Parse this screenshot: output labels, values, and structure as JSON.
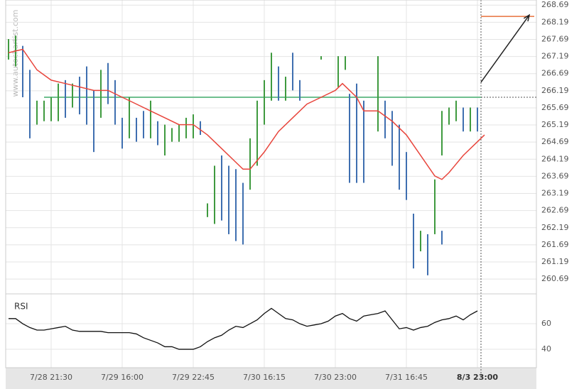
{
  "watermark": "www.autochartist.com",
  "chart_data": {
    "type": "price",
    "ylim": [
      260.34,
      268.84
    ],
    "yticks": [
      268.69,
      268.19,
      267.69,
      267.19,
      266.69,
      266.19,
      265.69,
      265.19,
      264.69,
      264.19,
      263.69,
      263.19,
      262.69,
      262.19,
      261.69,
      261.19,
      260.69
    ],
    "xlim": [
      -0.4,
      74.3
    ],
    "xticks": [
      {
        "value": 6,
        "label": "7/28 21:30"
      },
      {
        "value": 16,
        "label": "7/29 16:00"
      },
      {
        "value": 26,
        "label": "7/29 22:45"
      },
      {
        "value": 36,
        "label": "7/30 16:15"
      },
      {
        "value": 46,
        "label": "7/30 23:00"
      },
      {
        "value": 56,
        "label": "7/31 16:45"
      },
      {
        "value": 66,
        "label": "8/3 23:00"
      }
    ],
    "grid": true,
    "series": [
      {
        "name": "up",
        "color": "#3f9a3f",
        "x": [
          0,
          1,
          4,
          5,
          6,
          7,
          9,
          13,
          17,
          20,
          22,
          23,
          24,
          25,
          26,
          28,
          29,
          34,
          35,
          36,
          37,
          39,
          44,
          46.4,
          47.4,
          52,
          58,
          60,
          61,
          62,
          63,
          65
        ],
        "high": [
          267.7,
          267.8,
          265.9,
          265.9,
          266.0,
          266.4,
          266.4,
          266.8,
          266.0,
          265.9,
          265.2,
          265.1,
          265.2,
          265.4,
          265.5,
          262.9,
          264.0,
          264.8,
          265.9,
          266.5,
          267.3,
          266.6,
          267.2,
          267.2,
          267.2,
          267.2,
          262.1,
          263.6,
          265.6,
          265.7,
          265.9,
          265.7
        ],
        "low": [
          267.1,
          266.9,
          265.2,
          265.3,
          265.3,
          265.3,
          265.7,
          265.4,
          264.8,
          264.8,
          264.3,
          264.7,
          264.7,
          264.8,
          264.8,
          262.5,
          262.3,
          263.3,
          264.0,
          265.2,
          265.9,
          265.9,
          267.1,
          266.3,
          266.8,
          265.0,
          261.5,
          262.0,
          264.3,
          265.2,
          265.3,
          265.0
        ]
      },
      {
        "name": "down",
        "color": "#3f6fb0",
        "x": [
          2,
          3,
          8,
          10,
          11,
          12,
          14,
          15,
          16,
          18,
          19,
          21,
          27,
          30,
          31,
          32,
          33,
          38,
          40,
          41,
          48,
          49,
          50,
          53,
          54,
          55,
          56,
          57,
          59,
          61,
          64,
          66
        ],
        "high": [
          267.5,
          266.8,
          266.5,
          266.6,
          266.9,
          266.2,
          267.0,
          266.5,
          265.4,
          265.4,
          265.6,
          265.3,
          265.3,
          264.3,
          264.0,
          263.9,
          263.5,
          266.9,
          267.3,
          266.5,
          266.1,
          266.4,
          265.9,
          265.9,
          265.6,
          265.2,
          264.4,
          262.6,
          262.0,
          262.1,
          265.7,
          265.7
        ],
        "low": [
          266.0,
          264.8,
          265.4,
          265.5,
          265.2,
          264.4,
          265.8,
          265.2,
          264.5,
          264.7,
          264.8,
          264.6,
          264.9,
          262.4,
          262.0,
          261.8,
          261.7,
          265.9,
          266.2,
          265.9,
          263.5,
          263.5,
          263.5,
          264.8,
          264.0,
          263.3,
          263.0,
          261.0,
          260.8,
          261.7,
          265.0,
          265.0
        ]
      }
    ],
    "moving_average": {
      "color": "#e8453c",
      "x": [
        0,
        2,
        4,
        6,
        8,
        10,
        12,
        14,
        16,
        18,
        20,
        22,
        24,
        26,
        28,
        30,
        32,
        33,
        34,
        36,
        38,
        40,
        42,
        44,
        46,
        47,
        48,
        49,
        50,
        52,
        54,
        56,
        58,
        60,
        61,
        62,
        64,
        66,
        67
      ],
      "values": [
        267.3,
        267.4,
        266.8,
        266.5,
        266.4,
        266.3,
        266.2,
        266.2,
        266.0,
        265.8,
        265.6,
        265.4,
        265.2,
        265.2,
        264.9,
        264.5,
        264.1,
        263.9,
        263.9,
        264.4,
        265.0,
        265.4,
        265.8,
        266.0,
        266.2,
        266.4,
        266.2,
        266.0,
        265.6,
        265.6,
        265.3,
        264.9,
        264.3,
        263.7,
        263.6,
        263.8,
        264.3,
        264.7,
        264.9
      ]
    },
    "resistance": {
      "value": 266.0,
      "color": "#6fbf8f"
    },
    "forecast": {
      "from": 266.44,
      "to": 268.4,
      "level": 268.36,
      "level_color": "#e8703c"
    },
    "rsi": {
      "label": "RSI",
      "ylim": [
        25.6,
        81.1
      ],
      "yticks": [
        60,
        40
      ],
      "x": [
        0,
        1,
        2,
        3,
        4,
        5,
        6,
        7,
        8,
        9,
        10,
        11,
        12,
        13,
        14,
        15,
        16,
        17,
        18,
        19,
        20,
        21,
        22,
        23,
        24,
        25,
        26,
        27,
        28,
        29,
        30,
        31,
        32,
        33,
        34,
        35,
        36,
        37,
        38,
        39,
        40,
        41,
        42,
        43,
        44,
        45,
        46,
        47,
        48,
        49,
        50,
        51,
        52,
        53,
        54,
        55,
        56,
        57,
        58,
        59,
        60,
        61,
        62,
        63,
        64,
        65,
        66
      ],
      "values": [
        64,
        64,
        60,
        57,
        55,
        55,
        56,
        57,
        58,
        55,
        54,
        54,
        54,
        54,
        53,
        53,
        53,
        53,
        52,
        49,
        47,
        45,
        42,
        42,
        40,
        40,
        40,
        42,
        46,
        49,
        51,
        55,
        58,
        57,
        60,
        63,
        68,
        72,
        68,
        64,
        63,
        60,
        58,
        59,
        60,
        62,
        66,
        68,
        64,
        62,
        66,
        67,
        68,
        70,
        63,
        56,
        57,
        55,
        57,
        58,
        61,
        63,
        64,
        66,
        63,
        67,
        70
      ]
    }
  }
}
